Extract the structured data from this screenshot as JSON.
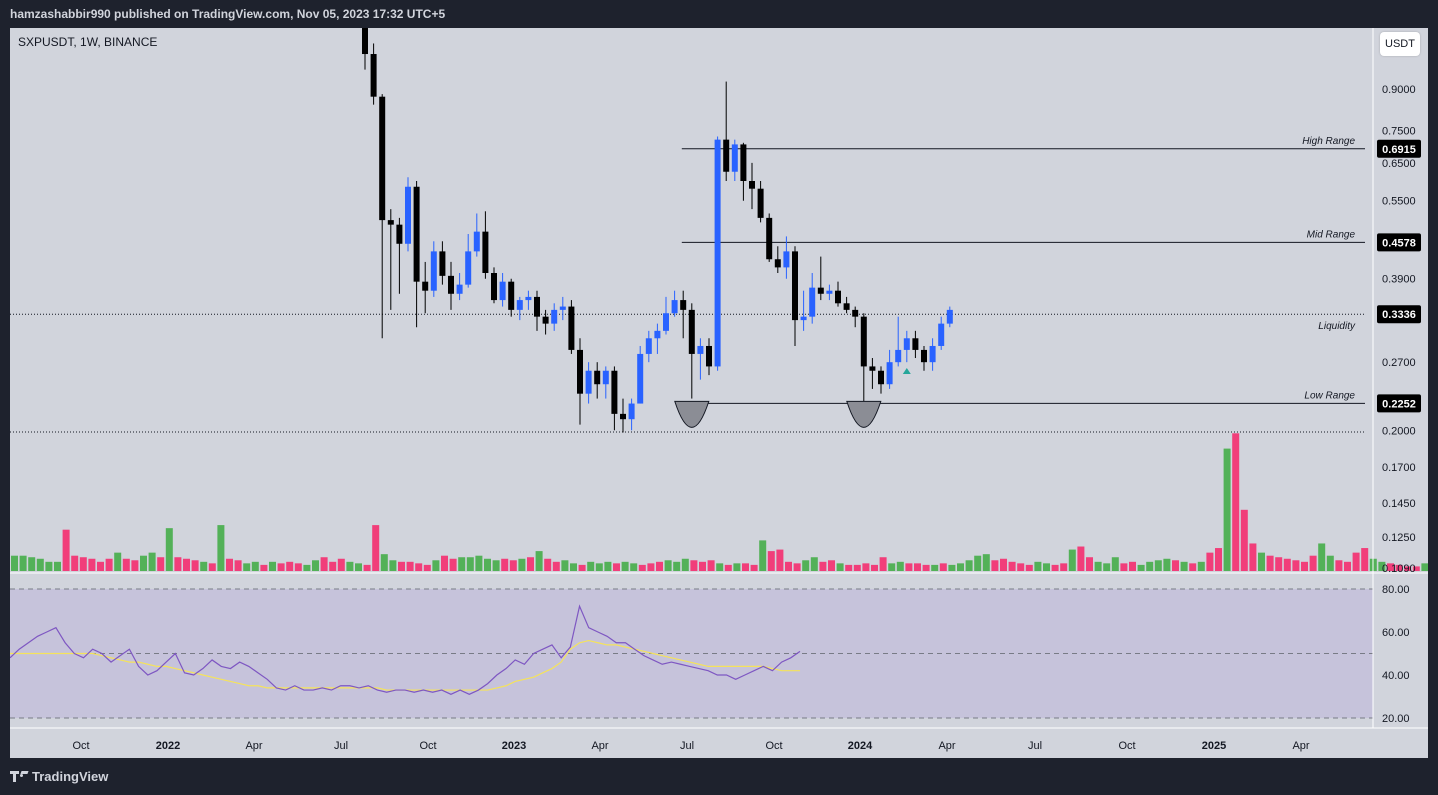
{
  "header": {
    "publish_line": "hamzashabbir990 published on TradingView.com, Nov 05, 2023 17:32 UTC+5"
  },
  "chart_header": {
    "symbol_line": "SXPUSDT, 1W, BINANCE",
    "currency_button": "USDT"
  },
  "footer": {
    "brand": "TradingView"
  },
  "colors": {
    "background": "#d1d4dc",
    "bull_candle": "#2962ff",
    "bear_candle": "#000000",
    "volume_up": "#4caf50",
    "volume_down": "#f23674",
    "rsi_line": "#7e57c2",
    "rsi_ma": "#f5e35b",
    "rsi_band": "#c6c3db",
    "frame": "#1e222d"
  },
  "chart_data": {
    "type": "candlestick",
    "symbol": "SXPUSDT",
    "interval": "1W",
    "exchange": "BINANCE",
    "price_axis": {
      "scale": "log",
      "tick_labels": [
        "0.9000",
        "0.7500",
        "0.6500",
        "0.5500",
        "0.3900",
        "0.2700",
        "0.2000",
        "0.1700",
        "0.1450",
        "0.1250",
        "0.1090"
      ],
      "ticks": [
        0.9,
        0.75,
        0.65,
        0.55,
        0.39,
        0.27,
        0.2,
        0.17,
        0.145,
        0.125,
        0.109
      ]
    },
    "time_axis": {
      "labels": [
        "Oct",
        "2022",
        "Apr",
        "Jul",
        "Oct",
        "2023",
        "Apr",
        "Jul",
        "Oct",
        "2024",
        "Apr",
        "Jul",
        "Oct",
        "2025",
        "Apr"
      ],
      "bold": [
        "2022",
        "2023",
        "2024",
        "2025"
      ]
    },
    "levels": [
      {
        "name": "High Range",
        "label": "High Range",
        "value": 0.6915,
        "value_label": "0.6915"
      },
      {
        "name": "Mid Range",
        "label": "Mid Range",
        "value": 0.4578,
        "value_label": "0.4578"
      },
      {
        "name": "Liquidity",
        "label": "Liquidity",
        "value": 0.3336,
        "value_label": "0.3336"
      },
      {
        "name": "Low Range",
        "label": "Low Range",
        "value": 0.2252,
        "value_label": "0.2252"
      }
    ],
    "dotted_levels": [
      0.3336,
      0.1985
    ],
    "candles": [
      [
        1.2,
        1.25,
        0.98,
        1.05
      ],
      [
        1.05,
        1.1,
        0.84,
        0.87
      ],
      [
        0.87,
        0.88,
        0.3,
        0.505
      ],
      [
        0.505,
        0.53,
        0.34,
        0.495
      ],
      [
        0.495,
        0.51,
        0.365,
        0.455
      ],
      [
        0.455,
        0.61,
        0.44,
        0.585
      ],
      [
        0.585,
        0.6,
        0.315,
        0.385
      ],
      [
        0.385,
        0.42,
        0.335,
        0.37
      ],
      [
        0.37,
        0.46,
        0.36,
        0.44
      ],
      [
        0.44,
        0.46,
        0.38,
        0.395
      ],
      [
        0.395,
        0.42,
        0.34,
        0.365
      ],
      [
        0.365,
        0.4,
        0.355,
        0.38
      ],
      [
        0.38,
        0.475,
        0.375,
        0.44
      ],
      [
        0.44,
        0.52,
        0.43,
        0.48
      ],
      [
        0.48,
        0.525,
        0.39,
        0.4
      ],
      [
        0.4,
        0.41,
        0.35,
        0.355
      ],
      [
        0.355,
        0.4,
        0.345,
        0.385
      ],
      [
        0.385,
        0.39,
        0.33,
        0.34
      ],
      [
        0.34,
        0.36,
        0.325,
        0.355
      ],
      [
        0.355,
        0.37,
        0.34,
        0.36
      ],
      [
        0.36,
        0.37,
        0.31,
        0.33
      ],
      [
        0.33,
        0.34,
        0.305,
        0.32
      ],
      [
        0.32,
        0.35,
        0.31,
        0.34
      ],
      [
        0.34,
        0.36,
        0.325,
        0.345
      ],
      [
        0.345,
        0.355,
        0.28,
        0.285
      ],
      [
        0.285,
        0.3,
        0.205,
        0.235
      ],
      [
        0.235,
        0.27,
        0.225,
        0.26
      ],
      [
        0.26,
        0.27,
        0.23,
        0.245
      ],
      [
        0.245,
        0.265,
        0.23,
        0.26
      ],
      [
        0.26,
        0.265,
        0.2,
        0.215
      ],
      [
        0.215,
        0.23,
        0.198,
        0.21
      ],
      [
        0.21,
        0.23,
        0.2,
        0.225
      ],
      [
        0.225,
        0.29,
        0.225,
        0.28
      ],
      [
        0.28,
        0.31,
        0.27,
        0.3
      ],
      [
        0.3,
        0.32,
        0.28,
        0.31
      ],
      [
        0.31,
        0.36,
        0.305,
        0.335
      ],
      [
        0.335,
        0.37,
        0.33,
        0.355
      ],
      [
        0.355,
        0.37,
        0.3,
        0.34
      ],
      [
        0.34,
        0.35,
        0.23,
        0.28
      ],
      [
        0.28,
        0.3,
        0.25,
        0.29
      ],
      [
        0.29,
        0.3,
        0.255,
        0.265
      ],
      [
        0.265,
        0.73,
        0.26,
        0.72
      ],
      [
        0.72,
        0.93,
        0.6,
        0.625
      ],
      [
        0.625,
        0.72,
        0.6,
        0.705
      ],
      [
        0.705,
        0.71,
        0.55,
        0.6
      ],
      [
        0.6,
        0.65,
        0.53,
        0.58
      ],
      [
        0.58,
        0.6,
        0.5,
        0.51
      ],
      [
        0.51,
        0.52,
        0.42,
        0.425
      ],
      [
        0.425,
        0.45,
        0.4,
        0.41
      ],
      [
        0.41,
        0.47,
        0.39,
        0.44
      ],
      [
        0.44,
        0.45,
        0.29,
        0.325
      ],
      [
        0.325,
        0.37,
        0.31,
        0.33
      ],
      [
        0.33,
        0.4,
        0.32,
        0.375
      ],
      [
        0.375,
        0.43,
        0.355,
        0.365
      ],
      [
        0.365,
        0.38,
        0.355,
        0.37
      ],
      [
        0.37,
        0.385,
        0.345,
        0.35
      ],
      [
        0.35,
        0.36,
        0.335,
        0.34
      ],
      [
        0.34,
        0.345,
        0.315,
        0.33
      ],
      [
        0.33,
        0.335,
        0.225,
        0.265
      ],
      [
        0.265,
        0.275,
        0.24,
        0.26
      ],
      [
        0.26,
        0.265,
        0.235,
        0.245
      ],
      [
        0.245,
        0.285,
        0.24,
        0.27
      ],
      [
        0.27,
        0.33,
        0.265,
        0.285
      ],
      [
        0.285,
        0.31,
        0.27,
        0.3
      ],
      [
        0.3,
        0.31,
        0.275,
        0.285
      ],
      [
        0.285,
        0.29,
        0.26,
        0.27
      ],
      [
        0.27,
        0.3,
        0.26,
        0.29
      ],
      [
        0.29,
        0.33,
        0.285,
        0.32
      ],
      [
        0.32,
        0.345,
        0.315,
        0.34
      ]
    ],
    "first_candle_week_offset": 40,
    "volume": [
      [
        10,
        1
      ],
      [
        10,
        1
      ],
      [
        9,
        1
      ],
      [
        8,
        1
      ],
      [
        6,
        1
      ],
      [
        6,
        1
      ],
      [
        27,
        0
      ],
      [
        10,
        0
      ],
      [
        9,
        0
      ],
      [
        8,
        0
      ],
      [
        6,
        0
      ],
      [
        8,
        0
      ],
      [
        12,
        1
      ],
      [
        8,
        0
      ],
      [
        7,
        0
      ],
      [
        10,
        1
      ],
      [
        12,
        1
      ],
      [
        9,
        0
      ],
      [
        28,
        1
      ],
      [
        9,
        0
      ],
      [
        8,
        0
      ],
      [
        7,
        0
      ],
      [
        6,
        1
      ],
      [
        5,
        0
      ],
      [
        30,
        1
      ],
      [
        8,
        0
      ],
      [
        7,
        0
      ],
      [
        5,
        1
      ],
      [
        6,
        1
      ],
      [
        4,
        0
      ],
      [
        6,
        1
      ],
      [
        5,
        0
      ],
      [
        6,
        0
      ],
      [
        5,
        0
      ],
      [
        4,
        1
      ],
      [
        7,
        1
      ],
      [
        9,
        0
      ],
      [
        6,
        0
      ],
      [
        8,
        0
      ],
      [
        6,
        1
      ],
      [
        5,
        1
      ],
      [
        4,
        0
      ],
      [
        30,
        0
      ],
      [
        11,
        1
      ],
      [
        7,
        1
      ],
      [
        6,
        0
      ],
      [
        6,
        0
      ],
      [
        5,
        0
      ],
      [
        4,
        0
      ],
      [
        7,
        1
      ],
      [
        10,
        0
      ],
      [
        8,
        0
      ],
      [
        9,
        1
      ],
      [
        9,
        1
      ],
      [
        10,
        1
      ],
      [
        8,
        1
      ],
      [
        7,
        1
      ],
      [
        8,
        0
      ],
      [
        7,
        0
      ],
      [
        8,
        1
      ],
      [
        9,
        0
      ],
      [
        13,
        1
      ],
      [
        8,
        0
      ],
      [
        6,
        0
      ],
      [
        7,
        1
      ],
      [
        5,
        1
      ],
      [
        4,
        0
      ],
      [
        6,
        1
      ],
      [
        5,
        1
      ],
      [
        6,
        1
      ],
      [
        5,
        0
      ],
      [
        6,
        1
      ],
      [
        5,
        1
      ],
      [
        4,
        0
      ],
      [
        5,
        0
      ],
      [
        6,
        0
      ],
      [
        7,
        1
      ],
      [
        6,
        1
      ],
      [
        8,
        1
      ],
      [
        7,
        0
      ],
      [
        6,
        0
      ],
      [
        7,
        0
      ],
      [
        5,
        1
      ],
      [
        4,
        0
      ],
      [
        5,
        1
      ],
      [
        5,
        0
      ],
      [
        4,
        0
      ],
      [
        20,
        1
      ],
      [
        13,
        0
      ],
      [
        14,
        0
      ],
      [
        6,
        0
      ],
      [
        5,
        0
      ],
      [
        7,
        1
      ],
      [
        9,
        1
      ],
      [
        6,
        0
      ],
      [
        7,
        0
      ],
      [
        5,
        1
      ],
      [
        4,
        0
      ],
      [
        4,
        0
      ],
      [
        5,
        0
      ],
      [
        4,
        0
      ],
      [
        9,
        0
      ],
      [
        5,
        1
      ],
      [
        6,
        1
      ],
      [
        5,
        0
      ],
      [
        5,
        0
      ],
      [
        4,
        0
      ],
      [
        4,
        1
      ],
      [
        5,
        0
      ],
      [
        4,
        1
      ],
      [
        5,
        1
      ],
      [
        7,
        1
      ],
      [
        10,
        1
      ],
      [
        11,
        1
      ],
      [
        7,
        0
      ],
      [
        8,
        0
      ],
      [
        6,
        0
      ],
      [
        5,
        0
      ],
      [
        4,
        0
      ],
      [
        6,
        1
      ],
      [
        5,
        1
      ],
      [
        4,
        0
      ],
      [
        5,
        0
      ],
      [
        14,
        1
      ],
      [
        16,
        0
      ],
      [
        9,
        0
      ],
      [
        6,
        1
      ],
      [
        5,
        1
      ],
      [
        9,
        1
      ],
      [
        5,
        0
      ],
      [
        6,
        0
      ],
      [
        4,
        1
      ],
      [
        6,
        1
      ],
      [
        7,
        1
      ],
      [
        8,
        1
      ],
      [
        7,
        0
      ],
      [
        6,
        1
      ],
      [
        5,
        0
      ],
      [
        6,
        1
      ],
      [
        12,
        0
      ],
      [
        15,
        0
      ],
      [
        80,
        1
      ],
      [
        90,
        0
      ],
      [
        40,
        0
      ],
      [
        18,
        0
      ],
      [
        12,
        1
      ],
      [
        10,
        0
      ],
      [
        9,
        0
      ],
      [
        8,
        0
      ],
      [
        7,
        0
      ],
      [
        6,
        0
      ],
      [
        10,
        0
      ],
      [
        18,
        1
      ],
      [
        10,
        1
      ],
      [
        7,
        0
      ],
      [
        6,
        0
      ],
      [
        12,
        0
      ],
      [
        15,
        0
      ],
      [
        8,
        1
      ],
      [
        6,
        1
      ],
      [
        5,
        0
      ],
      [
        4,
        0
      ],
      [
        3,
        0
      ],
      [
        3,
        0
      ],
      [
        5,
        1
      ],
      [
        3,
        0
      ],
      [
        4,
        0
      ],
      [
        6,
        1
      ],
      [
        5,
        1
      ],
      [
        9,
        1
      ],
      [
        6,
        1
      ],
      [
        5,
        0
      ],
      [
        4,
        0
      ],
      [
        4,
        1
      ],
      [
        4,
        0
      ],
      [
        5,
        1
      ],
      [
        7,
        1
      ]
    ],
    "rsi": {
      "axis_labels": [
        "80.00",
        "60.00",
        "40.00",
        "20.00"
      ],
      "ticks": [
        80,
        60,
        40,
        20
      ],
      "band": [
        30,
        70
      ],
      "rsi_line": [
        48,
        52,
        55,
        58,
        60,
        62,
        55,
        50,
        48,
        52,
        50,
        46,
        49,
        52,
        44,
        40,
        42,
        46,
        50,
        41,
        40,
        43,
        47,
        44,
        43,
        46,
        44,
        41,
        38,
        34,
        33,
        35,
        33,
        33,
        34,
        33,
        35,
        35,
        34,
        35,
        33,
        32,
        33,
        33,
        32,
        33,
        32,
        33,
        31,
        33,
        31,
        33,
        36,
        40,
        43,
        47,
        45,
        50,
        52,
        54,
        48,
        53,
        72,
        62,
        60,
        58,
        55,
        55,
        52,
        49,
        47,
        45,
        46,
        45,
        44,
        43,
        42,
        40,
        40,
        38,
        40,
        42,
        44,
        42,
        46,
        48,
        51
      ],
      "rsi_ma": [
        50,
        50,
        50,
        50,
        50,
        50,
        50,
        50,
        50,
        50,
        49,
        48,
        47,
        46,
        46,
        45,
        44,
        44,
        43,
        42,
        41,
        40,
        39,
        38,
        37,
        36,
        35,
        35,
        34,
        34,
        34,
        34,
        34,
        34,
        34,
        34,
        34,
        34,
        34,
        34,
        34,
        33,
        33,
        33,
        33,
        33,
        33,
        33,
        33,
        33,
        33,
        33,
        33,
        34,
        35,
        37,
        38,
        39,
        41,
        43,
        46,
        52,
        55,
        56,
        55,
        54,
        54,
        53,
        52,
        51,
        50,
        49,
        48,
        47,
        46,
        45,
        44,
        44,
        44,
        44,
        44,
        44,
        44,
        43,
        42,
        42,
        42
      ]
    },
    "grid": false,
    "annotations": [
      {
        "type": "double-bottom-marker",
        "at_candle": 38
      },
      {
        "type": "double-bottom-marker",
        "at_candle": 58
      },
      {
        "type": "up-arrow",
        "at_candle": 63
      }
    ]
  }
}
